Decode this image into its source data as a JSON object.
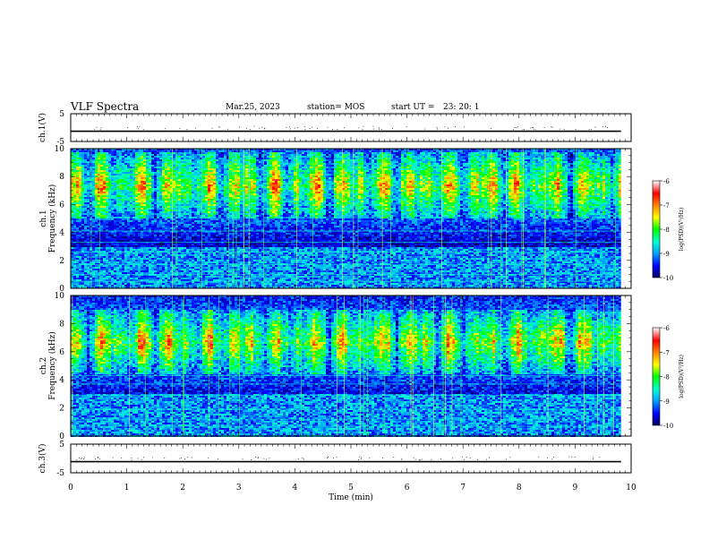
{
  "header": {
    "title": "VLF Spectra",
    "date": "Mar.25, 2023",
    "station": "station= MOS",
    "start_label": "start UT =",
    "start_time": "23: 20: 1"
  },
  "chart_data": [
    {
      "type": "line",
      "panel": "ch1-waveform",
      "ylabel": "ch.1(V)",
      "ytick_labels": [
        "5",
        "-5"
      ],
      "ylim": [
        -5,
        5
      ],
      "series": [
        {
          "values": [
            -1.3,
            -1.3
          ]
        }
      ]
    },
    {
      "type": "heatmap",
      "panel": "ch1-spectrogram",
      "ylabel": "ch.1\nFrequency (kHz)",
      "ylim": [
        0,
        10
      ],
      "yticks": [
        0,
        2,
        4,
        6,
        8,
        10
      ],
      "xlim": [
        0,
        10
      ],
      "data_xmax": 9.82,
      "strong_band_khz": [
        5.0,
        9.8
      ],
      "colorbar": {
        "label": "log(PSD)(V²/Hz)",
        "range": [
          -10,
          -6
        ],
        "ticks": [
          "-6",
          "-7",
          "-8",
          "-9",
          "-10"
        ]
      }
    },
    {
      "type": "heatmap",
      "panel": "ch2-spectrogram",
      "ylabel": "ch.2\nFrequency (kHz)",
      "ylim": [
        0,
        10
      ],
      "yticks": [
        0,
        2,
        4,
        6,
        8,
        10
      ],
      "xlim": [
        0,
        10
      ],
      "data_xmax": 9.82,
      "strong_band_khz": [
        4.5,
        9.0
      ],
      "colorbar": {
        "label": "log(PSD)(V²/Hz)",
        "range": [
          -10,
          -6
        ],
        "ticks": [
          "-6",
          "-7",
          "-8",
          "-9",
          "-10"
        ]
      }
    },
    {
      "type": "line",
      "panel": "ch3-waveform",
      "ylabel": "ch.3(V)",
      "ytick_labels": [
        "5",
        "-5"
      ],
      "ylim": [
        -5,
        5
      ],
      "series": [
        {
          "values": [
            -1.1,
            -1.1
          ]
        }
      ]
    }
  ],
  "xaxis": {
    "label": "Time (min)",
    "ticks": [
      "0",
      "1",
      "2",
      "3",
      "4",
      "5",
      "6",
      "7",
      "8",
      "9",
      "10"
    ]
  },
  "colors": {
    "colormap": [
      "#000060",
      "#0000ff",
      "#00a0ff",
      "#00ffd0",
      "#00ff00",
      "#ffff00",
      "#ff8000",
      "#ff0000",
      "#ffffff"
    ]
  }
}
